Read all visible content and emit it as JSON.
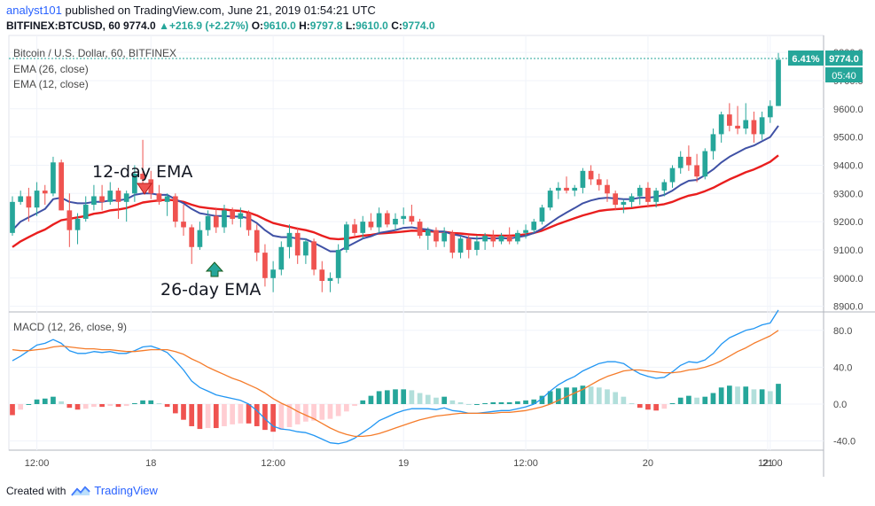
{
  "header": {
    "user": "analyst101",
    "published": "published on TradingView.com, June 21, 2019 01:54:21 UTC",
    "symbol": "BITFINEX:BTCUSD, 60",
    "last": "9774.0",
    "change": "+216.9 (+2.27%)",
    "o_label": "O:",
    "o_val": "9610.0",
    "h_label": "H:",
    "h_val": "9797.8",
    "l_label": "L:",
    "l_val": "9610.0",
    "c_label": "C:",
    "c_val": "9774.0"
  },
  "legend": {
    "title": "Bitcoin / U.S. Dollar, 60, BITFINEX",
    "ema26": "EMA (26, close)",
    "ema12": "EMA (12, close)",
    "macd": "MACD (12, 26, close, 9)"
  },
  "annotations": {
    "ema12_label": "12-day EMA",
    "ema26_label": "26-day EMA"
  },
  "price_badges": {
    "pct": "6.41%",
    "price": "9774.0",
    "timer": "05:40"
  },
  "footer": {
    "created": "Created with",
    "brand": "TradingView"
  },
  "colors": {
    "up": "#26a69a",
    "down": "#ef5350",
    "ema26": "#e91e1e",
    "ema12": "#3f51a5",
    "macd": "#2196f3",
    "signal": "#f57c2b",
    "hist_up_strong": "#26a69a",
    "hist_up_weak": "#b2dfdb",
    "hist_down_strong": "#ef5350",
    "hist_down_weak": "#ffcdd2",
    "badge": "#26a69a"
  },
  "chart_data": [
    {
      "type": "candlestick",
      "name": "price",
      "ylim": [
        8880,
        9860
      ],
      "yticks": [
        "9800.0",
        "9700.0",
        "9600.0",
        "9500.0",
        "9400.0",
        "9300.0",
        "9200.0",
        "9100.0",
        "9000.0",
        "8900.0"
      ],
      "xticks": [
        "12:00",
        "18",
        "12:00",
        "19",
        "12:00",
        "20",
        "12:00",
        "21"
      ],
      "candles": [
        [
          9160,
          9290,
          9150,
          9270
        ],
        [
          9270,
          9310,
          9260,
          9290
        ],
        [
          9290,
          9320,
          9200,
          9250
        ],
        [
          9250,
          9340,
          9220,
          9310
        ],
        [
          9310,
          9330,
          9260,
          9300
        ],
        [
          9300,
          9430,
          9290,
          9410
        ],
        [
          9410,
          9420,
          9240,
          9240
        ],
        [
          9240,
          9300,
          9110,
          9170
        ],
        [
          9170,
          9230,
          9120,
          9210
        ],
        [
          9210,
          9290,
          9200,
          9260
        ],
        [
          9260,
          9330,
          9240,
          9290
        ],
        [
          9290,
          9330,
          9240,
          9270
        ],
        [
          9270,
          9340,
          9260,
          9310
        ],
        [
          9310,
          9320,
          9210,
          9270
        ],
        [
          9270,
          9310,
          9200,
          9300
        ],
        [
          9300,
          9400,
          9270,
          9370
        ],
        [
          9370,
          9490,
          9330,
          9350
        ],
        [
          9350,
          9380,
          9280,
          9300
        ],
        [
          9300,
          9330,
          9260,
          9270
        ],
        [
          9270,
          9300,
          9220,
          9290
        ],
        [
          9290,
          9300,
          9180,
          9200
        ],
        [
          9200,
          9260,
          9150,
          9180
        ],
        [
          9180,
          9190,
          9050,
          9110
        ],
        [
          9110,
          9200,
          9100,
          9170
        ],
        [
          9170,
          9240,
          9150,
          9220
        ],
        [
          9220,
          9250,
          9160,
          9180
        ],
        [
          9180,
          9260,
          9160,
          9240
        ],
        [
          9240,
          9250,
          9190,
          9210
        ],
        [
          9210,
          9250,
          9180,
          9230
        ],
        [
          9230,
          9240,
          9150,
          9170
        ],
        [
          9170,
          9190,
          9060,
          9090
        ],
        [
          9090,
          9120,
          8970,
          9000
        ],
        [
          9000,
          9060,
          8950,
          9030
        ],
        [
          9030,
          9130,
          9010,
          9110
        ],
        [
          9110,
          9190,
          9070,
          9160
        ],
        [
          9160,
          9180,
          9050,
          9080
        ],
        [
          9080,
          9140,
          9050,
          9130
        ],
        [
          9130,
          9140,
          9010,
          9030
        ],
        [
          9030,
          9060,
          8950,
          8990
        ],
        [
          8990,
          9020,
          8950,
          9000
        ],
        [
          9000,
          9120,
          8980,
          9100
        ],
        [
          9100,
          9200,
          9090,
          9190
        ],
        [
          9190,
          9210,
          9150,
          9160
        ],
        [
          9160,
          9220,
          9140,
          9200
        ],
        [
          9200,
          9230,
          9170,
          9180
        ],
        [
          9180,
          9250,
          9160,
          9230
        ],
        [
          9230,
          9240,
          9180,
          9190
        ],
        [
          9190,
          9230,
          9170,
          9210
        ],
        [
          9210,
          9250,
          9190,
          9220
        ],
        [
          9220,
          9260,
          9190,
          9200
        ],
        [
          9200,
          9210,
          9140,
          9150
        ],
        [
          9150,
          9180,
          9100,
          9170
        ],
        [
          9170,
          9180,
          9110,
          9130
        ],
        [
          9130,
          9180,
          9110,
          9160
        ],
        [
          9160,
          9170,
          9070,
          9090
        ],
        [
          9090,
          9150,
          9070,
          9140
        ],
        [
          9140,
          9150,
          9070,
          9100
        ],
        [
          9100,
          9150,
          9080,
          9130
        ],
        [
          9130,
          9160,
          9100,
          9150
        ],
        [
          9150,
          9170,
          9110,
          9130
        ],
        [
          9130,
          9160,
          9120,
          9150
        ],
        [
          9150,
          9180,
          9120,
          9130
        ],
        [
          9130,
          9170,
          9120,
          9160
        ],
        [
          9160,
          9190,
          9140,
          9170
        ],
        [
          9170,
          9210,
          9160,
          9200
        ],
        [
          9200,
          9260,
          9190,
          9250
        ],
        [
          9250,
          9320,
          9240,
          9310
        ],
        [
          9310,
          9340,
          9280,
          9320
        ],
        [
          9320,
          9360,
          9300,
          9310
        ],
        [
          9310,
          9330,
          9290,
          9320
        ],
        [
          9320,
          9390,
          9300,
          9380
        ],
        [
          9380,
          9400,
          9330,
          9350
        ],
        [
          9350,
          9370,
          9310,
          9330
        ],
        [
          9330,
          9350,
          9270,
          9300
        ],
        [
          9300,
          9310,
          9240,
          9260
        ],
        [
          9260,
          9280,
          9230,
          9270
        ],
        [
          9270,
          9300,
          9250,
          9290
        ],
        [
          9290,
          9330,
          9260,
          9320
        ],
        [
          9320,
          9340,
          9250,
          9270
        ],
        [
          9270,
          9320,
          9250,
          9310
        ],
        [
          9310,
          9350,
          9290,
          9340
        ],
        [
          9340,
          9400,
          9320,
          9390
        ],
        [
          9390,
          9450,
          9370,
          9430
        ],
        [
          9430,
          9470,
          9380,
          9400
        ],
        [
          9400,
          9440,
          9340,
          9360
        ],
        [
          9360,
          9460,
          9350,
          9450
        ],
        [
          9450,
          9530,
          9420,
          9510
        ],
        [
          9510,
          9590,
          9480,
          9580
        ],
        [
          9580,
          9620,
          9520,
          9540
        ],
        [
          9540,
          9610,
          9510,
          9530
        ],
        [
          9530,
          9620,
          9510,
          9560
        ],
        [
          9560,
          9590,
          9480,
          9510
        ],
        [
          9510,
          9590,
          9490,
          9570
        ],
        [
          9570,
          9630,
          9550,
          9610
        ],
        [
          9610,
          9798,
          9610,
          9774
        ]
      ],
      "ema12": [
        9170,
        9200,
        9215,
        9230,
        9245,
        9280,
        9285,
        9270,
        9265,
        9265,
        9270,
        9270,
        9275,
        9275,
        9280,
        9295,
        9300,
        9300,
        9295,
        9295,
        9280,
        9265,
        9245,
        9230,
        9225,
        9220,
        9220,
        9218,
        9218,
        9212,
        9195,
        9170,
        9150,
        9145,
        9145,
        9140,
        9138,
        9125,
        9110,
        9095,
        9095,
        9110,
        9125,
        9140,
        9148,
        9160,
        9165,
        9170,
        9178,
        9180,
        9175,
        9172,
        9165,
        9165,
        9155,
        9150,
        9142,
        9140,
        9142,
        9140,
        9142,
        9140,
        9145,
        9150,
        9160,
        9175,
        9195,
        9215,
        9232,
        9248,
        9265,
        9275,
        9282,
        9285,
        9282,
        9280,
        9280,
        9285,
        9285,
        9288,
        9295,
        9310,
        9330,
        9345,
        9348,
        9365,
        9385,
        9410,
        9430,
        9445,
        9460,
        9470,
        9485,
        9500,
        9540
      ],
      "ema26": [
        9110,
        9130,
        9145,
        9160,
        9172,
        9190,
        9205,
        9210,
        9215,
        9220,
        9228,
        9232,
        9240,
        9243,
        9248,
        9258,
        9268,
        9272,
        9275,
        9278,
        9275,
        9270,
        9260,
        9252,
        9248,
        9245,
        9243,
        9240,
        9238,
        9232,
        9222,
        9208,
        9195,
        9188,
        9182,
        9175,
        9170,
        9162,
        9150,
        9140,
        9138,
        9140,
        9145,
        9150,
        9153,
        9158,
        9160,
        9162,
        9165,
        9168,
        9167,
        9166,
        9164,
        9164,
        9160,
        9158,
        9155,
        9153,
        9152,
        9150,
        9150,
        9150,
        9152,
        9155,
        9160,
        9168,
        9180,
        9192,
        9202,
        9212,
        9222,
        9230,
        9238,
        9242,
        9244,
        9246,
        9248,
        9252,
        9255,
        9258,
        9262,
        9270,
        9282,
        9292,
        9298,
        9308,
        9320,
        9335,
        9350,
        9362,
        9375,
        9385,
        9398,
        9412,
        9435
      ]
    },
    {
      "type": "macd",
      "name": "MACD",
      "ylim": [
        -50,
        100
      ],
      "yticks": [
        "80.0",
        "40.0",
        "0.0",
        "-40.0"
      ],
      "macd": [
        47,
        52,
        58,
        64,
        66,
        70,
        66,
        58,
        55,
        55,
        57,
        56,
        57,
        55,
        55,
        58,
        62,
        63,
        60,
        56,
        47,
        37,
        25,
        18,
        14,
        10,
        8,
        6,
        4,
        0,
        -7,
        -16,
        -24,
        -27,
        -28,
        -30,
        -31,
        -34,
        -38,
        -42,
        -43,
        -41,
        -37,
        -31,
        -25,
        -18,
        -14,
        -10,
        -7,
        -5,
        -5,
        -5,
        -6,
        -4,
        -7,
        -8,
        -10,
        -10,
        -9,
        -8,
        -7,
        -7,
        -5,
        -3,
        0,
        6,
        14,
        21,
        26,
        30,
        36,
        40,
        44,
        46,
        46,
        44,
        38,
        33,
        30,
        28,
        29,
        35,
        42,
        46,
        45,
        48,
        55,
        65,
        72,
        76,
        80,
        82,
        86,
        88,
        102
      ],
      "signal": [
        59,
        58,
        58,
        59,
        60,
        62,
        63,
        62,
        61,
        60,
        60,
        59,
        59,
        58,
        57,
        57,
        58,
        59,
        59,
        59,
        57,
        54,
        49,
        45,
        40,
        36,
        32,
        28,
        25,
        21,
        17,
        12,
        6,
        1,
        -3,
        -8,
        -12,
        -16,
        -21,
        -26,
        -30,
        -33,
        -35,
        -35,
        -34,
        -32,
        -29,
        -26,
        -23,
        -20,
        -17,
        -15,
        -13,
        -12,
        -11,
        -10,
        -10,
        -10,
        -10,
        -10,
        -9,
        -9,
        -8,
        -7,
        -5,
        -3,
        0,
        4,
        8,
        12,
        16,
        21,
        26,
        30,
        33,
        36,
        37,
        37,
        36,
        35,
        34,
        34,
        35,
        37,
        38,
        40,
        43,
        47,
        52,
        57,
        61,
        66,
        70,
        74,
        80
      ],
      "hist_range": [
        -50,
        100
      ]
    }
  ]
}
